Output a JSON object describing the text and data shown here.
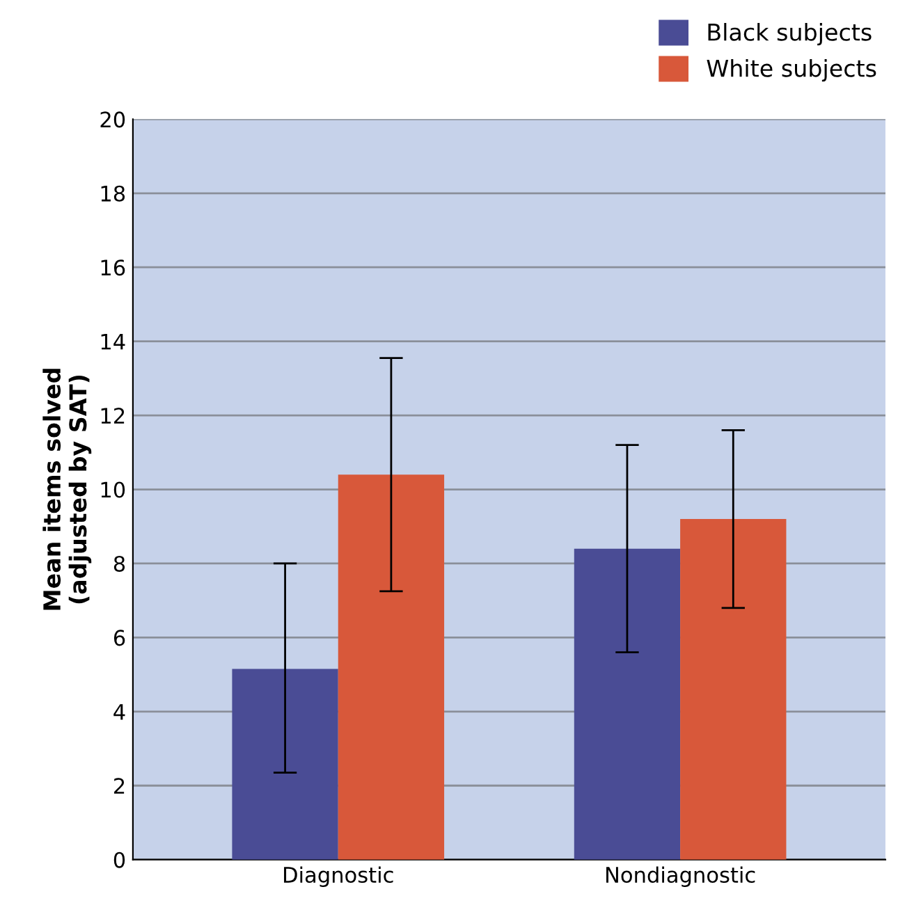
{
  "chart_data": {
    "type": "bar",
    "ylabel": "Mean items solved\n(adjusted by SAT)",
    "categories": [
      "Diagnostic",
      "Nondiagnostic"
    ],
    "series": [
      {
        "name": "Black subjects",
        "color": "#4a4c95",
        "values": [
          5.15,
          8.4
        ],
        "errors": [
          [
            2.35,
            8.0
          ],
          [
            5.6,
            11.2
          ]
        ]
      },
      {
        "name": "White subjects",
        "color": "#d8583a",
        "values": [
          10.4,
          9.2
        ],
        "errors": [
          [
            7.25,
            13.55
          ],
          [
            6.8,
            11.6
          ]
        ]
      }
    ],
    "ylim": [
      0,
      20
    ],
    "yticks": [
      0,
      2,
      4,
      6,
      8,
      10,
      12,
      14,
      16,
      18,
      20
    ],
    "grid": "y",
    "legend": "top right"
  }
}
